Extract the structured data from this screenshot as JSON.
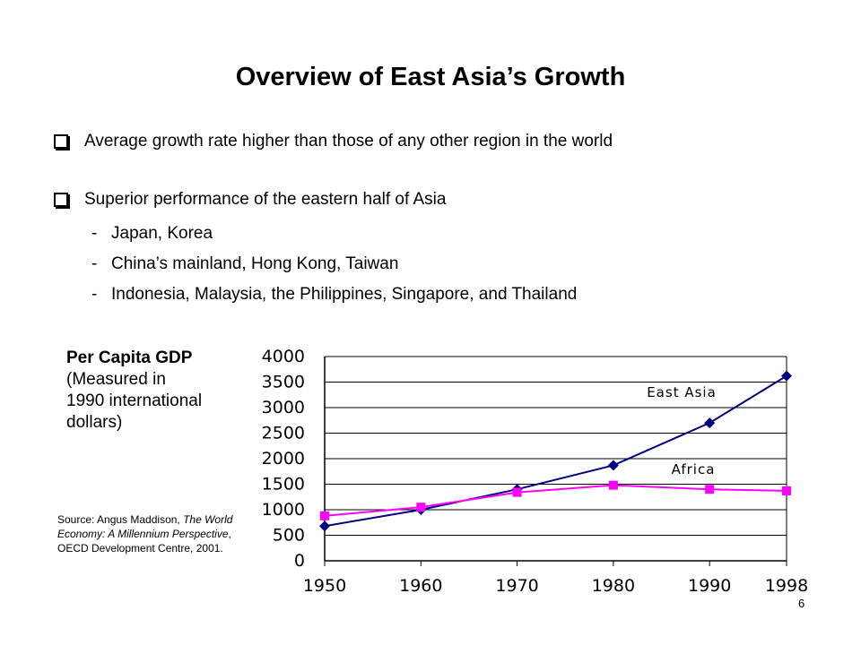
{
  "slide": {
    "title": "Overview of East Asia’s Growth",
    "bullets": [
      "Average growth rate higher than those of any other region in the world",
      "Superior performance of the eastern half of Asia"
    ],
    "sub_bullets": [
      "Japan, Korea",
      "China’s mainland, Hong Kong, Taiwan",
      "Indonesia, Malaysia, the Philippines, Singapore, and Thailand"
    ],
    "sub_dash": "-",
    "caption_bold": "Per Capita GDP",
    "caption_lines": [
      "(Measured in",
      "1990 international",
      "dollars)"
    ],
    "source_prefix": "Source: Angus Maddison, ",
    "source_italic": "The World Economy: A Millennium Perspective",
    "source_suffix": ", OECD Development Centre, 2001.",
    "slide_number": "6"
  },
  "chart_data": {
    "type": "line",
    "categories": [
      "1950",
      "1960",
      "1970",
      "1980",
      "1990",
      "1998"
    ],
    "series": [
      {
        "name": "East Asia",
        "values": [
          680,
          1000,
          1400,
          1870,
          2700,
          3620
        ],
        "color": "#000080",
        "marker": "diamond"
      },
      {
        "name": "Africa",
        "values": [
          880,
          1050,
          1340,
          1480,
          1400,
          1370
        ],
        "color": "#ff00ff",
        "marker": "square"
      }
    ],
    "ylim": [
      0,
      4000
    ],
    "yticks": [
      0,
      500,
      1000,
      1500,
      2000,
      2500,
      3000,
      3500,
      4000
    ],
    "grid": true,
    "legend": "inline labels"
  }
}
